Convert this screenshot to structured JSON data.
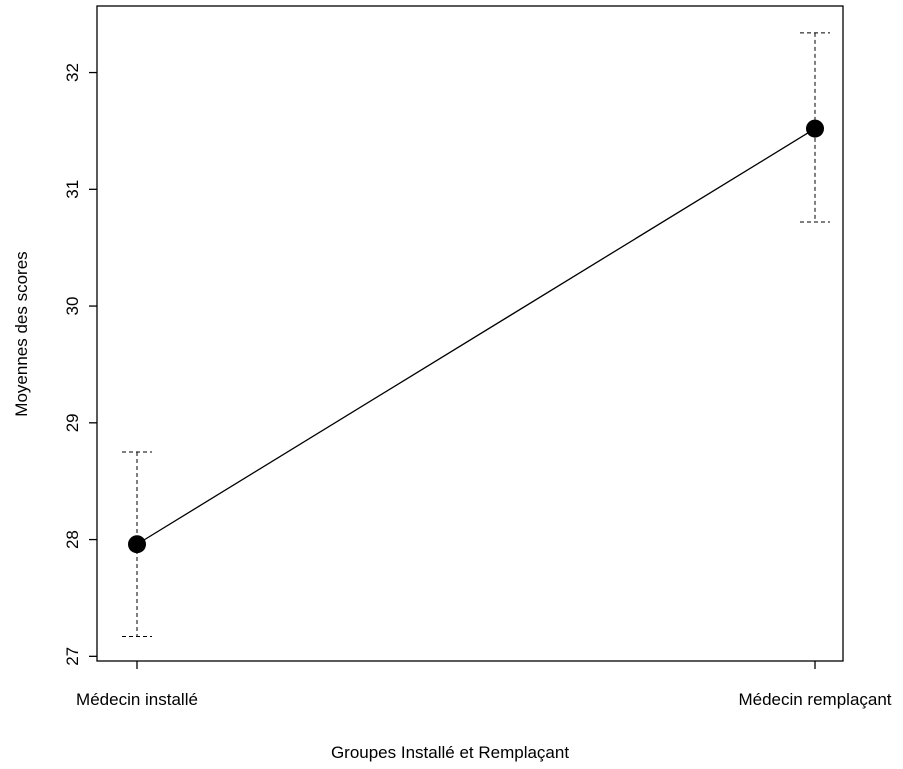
{
  "chart_data": {
    "type": "line",
    "title": "",
    "xlabel": "Groupes Installé et Remplaçant",
    "ylabel": "Moyennes des scores",
    "categories": [
      "Médecin installé",
      "Médecin remplaçant"
    ],
    "series": [
      {
        "values": [
          27.96,
          31.52
        ],
        "error_low": [
          27.17,
          30.72
        ],
        "error_high": [
          28.75,
          32.34
        ]
      }
    ],
    "ylim": [
      26.96,
      32.57
    ],
    "yticks": [
      27,
      28,
      29,
      30,
      31,
      32
    ],
    "grid": false,
    "legend": "none",
    "colors": {
      "line": "#000000",
      "marker": "#000000",
      "errorbar": "#000000"
    }
  }
}
